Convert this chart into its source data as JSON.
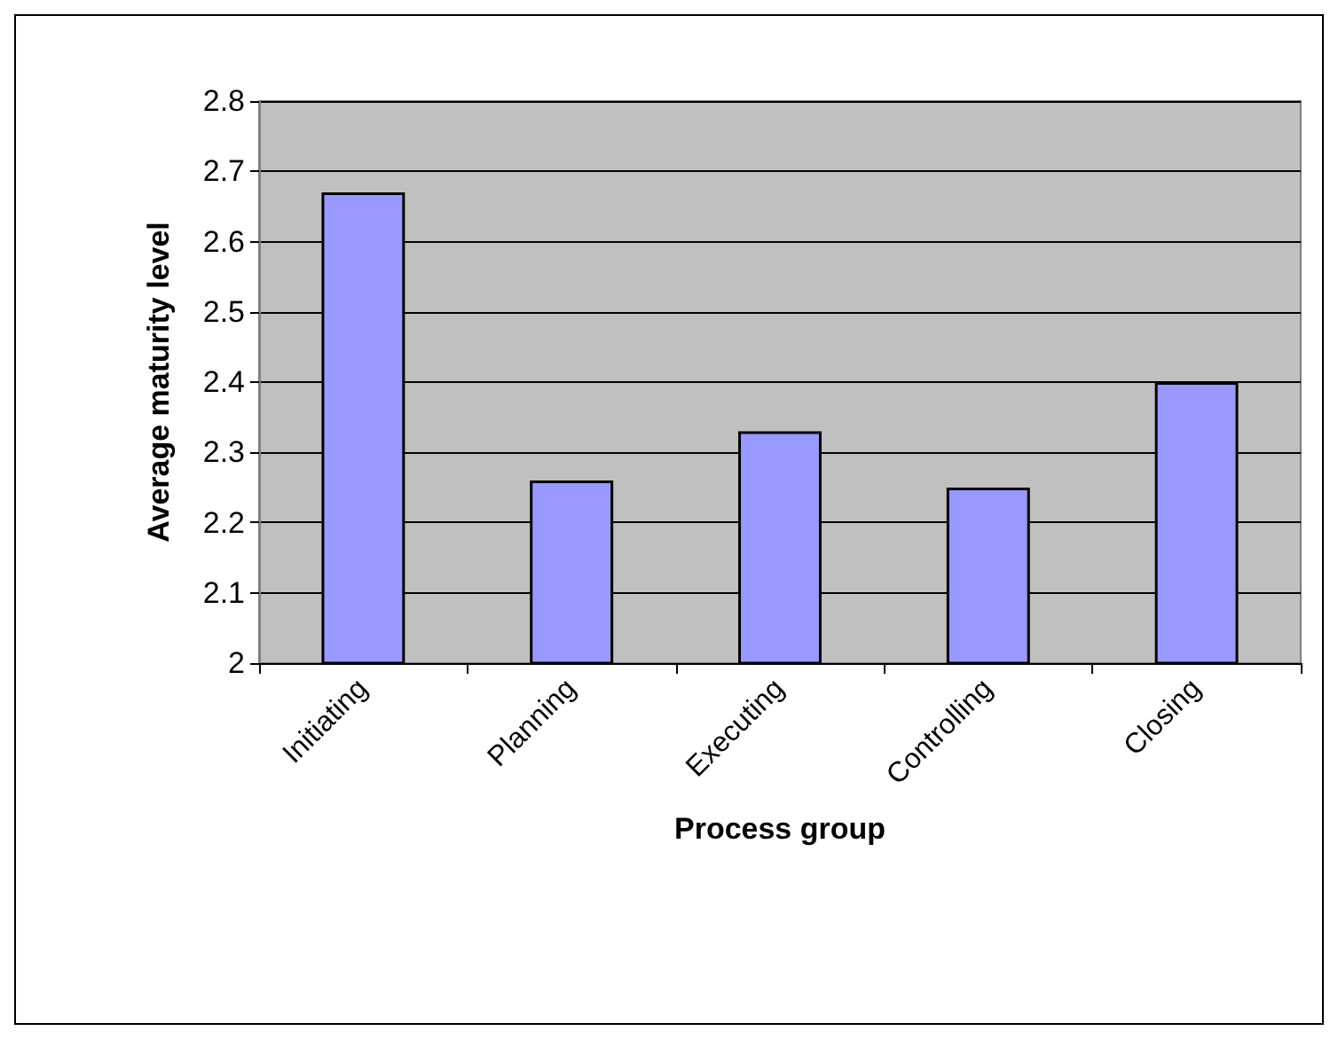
{
  "chart_data": {
    "type": "bar",
    "xlabel": "Process group",
    "ylabel": "Average maturity level",
    "categories": [
      "Initiating",
      "Planning",
      "Executing",
      "Controlling",
      "Closing"
    ],
    "values": [
      2.67,
      2.26,
      2.33,
      2.25,
      2.4
    ],
    "color": "#9999ff",
    "ylim": [
      2,
      2.8
    ],
    "yticks": [
      2,
      2.1,
      2.2,
      2.3,
      2.4,
      2.5,
      2.6,
      2.7,
      2.8
    ],
    "grid": "y"
  }
}
